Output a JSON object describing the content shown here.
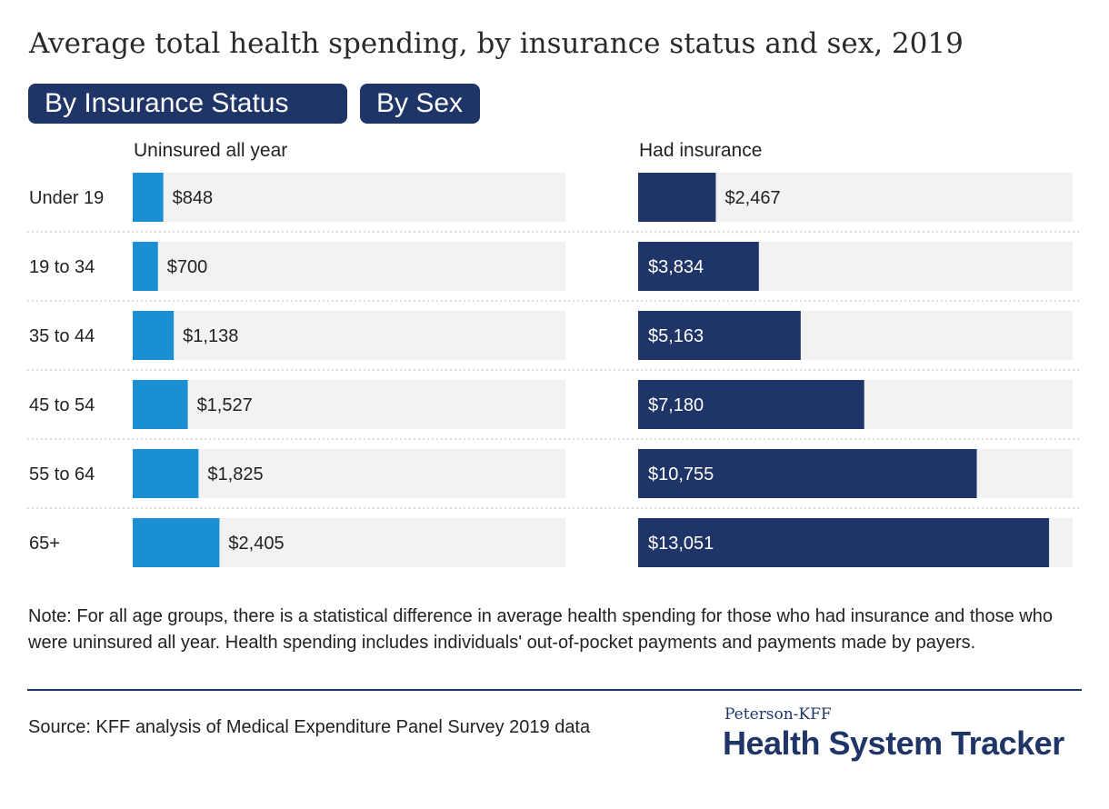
{
  "title": "Average total health spending, by insurance status and sex, 2019",
  "toggles": {
    "insurance_label": "By Insurance Status",
    "sex_label": "By Sex"
  },
  "colors": {
    "uninsured": "#1a8fd1",
    "insured": "#1f3567",
    "track": "#f2f2f2",
    "toggle_bg": "#1f3567"
  },
  "chart_data": {
    "type": "bar",
    "orientation": "horizontal",
    "categories": [
      "Under 19",
      "19 to 34",
      "35 to 44",
      "45 to 54",
      "55 to 64",
      "65+"
    ],
    "series": [
      {
        "name": "Uninsured all year",
        "values": [
          848,
          700,
          1138,
          1527,
          1825,
          2405
        ],
        "labels": [
          "$848",
          "$700",
          "$1,138",
          "$1,527",
          "$1,825",
          "$2,405"
        ]
      },
      {
        "name": "Had insurance",
        "values": [
          2467,
          3834,
          5163,
          7180,
          10755,
          13051
        ],
        "labels": [
          "$2,467",
          "$3,834",
          "$5,163",
          "$7,180",
          "$10,755",
          "$13,051"
        ]
      }
    ],
    "xlim": [
      0,
      13800
    ],
    "grid": false,
    "layout": "small multiples"
  },
  "note": "Note: For all age groups, there is a statistical difference in average health spending for those who had insurance and those who were uninsured all year. Health spending includes individuals' out-of-pocket payments and payments made by payers.",
  "source": "Source: KFF analysis of Medical Expenditure Panel Survey 2019 data",
  "logo": {
    "line1": "Peterson-KFF",
    "line2": "Health System Tracker"
  }
}
